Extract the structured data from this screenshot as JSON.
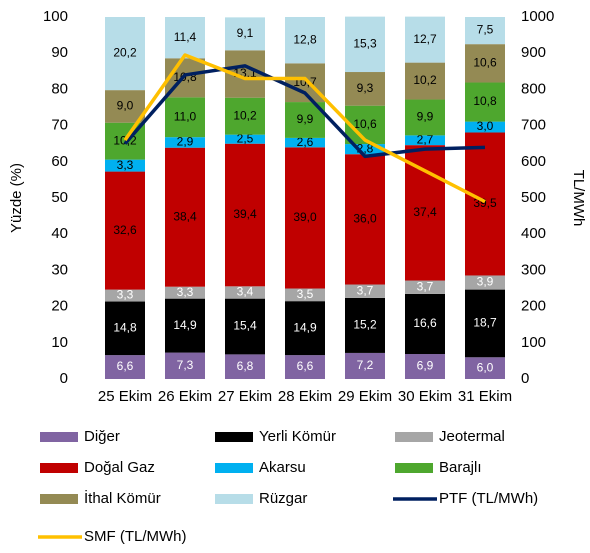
{
  "chart_data": {
    "type": "bar",
    "stacked": true,
    "categories": [
      "25 Ekim",
      "26 Ekim",
      "27 Ekim",
      "28 Ekim",
      "29 Ekim",
      "30 Ekim",
      "31 Ekim"
    ],
    "ylabel": "Yüzde (%)",
    "y2label": "TL/MWh",
    "ylim": [
      0,
      100
    ],
    "yticks": [
      0,
      10,
      20,
      30,
      40,
      50,
      60,
      70,
      80,
      90,
      100
    ],
    "y2lim": [
      0,
      1000
    ],
    "y2ticks": [
      0,
      100,
      200,
      300,
      400,
      500,
      600,
      700,
      800,
      900,
      1000
    ],
    "series": [
      {
        "name": "Diğer",
        "color": "#8064a2",
        "label_color": "#ffffff",
        "values": [
          6.6,
          7.3,
          6.8,
          6.6,
          7.2,
          6.9,
          6.0
        ],
        "value_labels": [
          "6,6",
          "7,3",
          "6,8",
          "6,6",
          "7,2",
          "6,9",
          "6,0"
        ]
      },
      {
        "name": "Yerli Kömür",
        "color": "#000000",
        "label_color": "#ffffff",
        "values": [
          14.8,
          14.9,
          15.4,
          14.9,
          15.2,
          16.6,
          18.7
        ],
        "value_labels": [
          "14,8",
          "14,9",
          "15,4",
          "14,9",
          "15,2",
          "16,6",
          "18,7"
        ]
      },
      {
        "name": "Jeotermal",
        "color": "#a6a6a6",
        "label_color": "#ffffff",
        "values": [
          3.3,
          3.3,
          3.4,
          3.5,
          3.7,
          3.7,
          3.9
        ],
        "value_labels": [
          "3,3",
          "3,3",
          "3,4",
          "3,5",
          "3,7",
          "3,7",
          "3,9"
        ]
      },
      {
        "name": "Doğal Gaz",
        "color": "#c00000",
        "label_color": "#000000",
        "values": [
          32.6,
          38.4,
          39.4,
          39.0,
          36.0,
          37.4,
          39.5
        ],
        "value_labels": [
          "32,6",
          "38,4",
          "39,4",
          "39,0",
          "36,0",
          "37,4",
          "39,5"
        ]
      },
      {
        "name": "Akarsu",
        "color": "#00b0f0",
        "label_color": "#000000",
        "values": [
          3.3,
          2.9,
          2.5,
          2.6,
          2.8,
          2.7,
          3.0
        ],
        "value_labels": [
          "3,3",
          "2,9",
          "2,5",
          "2,6",
          "2,8",
          "2,7",
          "3,0"
        ]
      },
      {
        "name": "Barajlı",
        "color": "#4ea72e",
        "label_color": "#000000",
        "values": [
          10.2,
          11.0,
          10.2,
          9.9,
          10.6,
          9.9,
          10.8
        ],
        "value_labels": [
          "10,2",
          "11,0",
          "10,2",
          "9,9",
          "10,6",
          "9,9",
          "10,8"
        ]
      },
      {
        "name": "İthal Kömür",
        "color": "#948a54",
        "label_color": "#000000",
        "values": [
          9.0,
          10.8,
          13.1,
          10.7,
          9.3,
          10.2,
          10.6
        ],
        "value_labels": [
          "9,0",
          "10,8",
          "13,1",
          "10,7",
          "9,3",
          "10,2",
          "10,6"
        ]
      },
      {
        "name": "Rüzgar",
        "color": "#b7dde8",
        "label_color": "#000000",
        "values": [
          20.2,
          11.4,
          9.1,
          12.8,
          15.3,
          12.7,
          7.5
        ],
        "value_labels": [
          "20,2",
          "11,4",
          "9,1",
          "12,8",
          "15,3",
          "12,7",
          "7,5"
        ]
      },
      {
        "name": "PTF (TL/MWh)",
        "type": "line",
        "axis": "y2",
        "color": "#002060",
        "values": [
          650,
          840,
          865,
          790,
          615,
          635,
          640
        ]
      },
      {
        "name": "SMF (TL/MWh)",
        "type": "line",
        "axis": "y2",
        "color": "#ffc000",
        "values": [
          660,
          895,
          830,
          830,
          660,
          575,
          490
        ]
      }
    ]
  }
}
